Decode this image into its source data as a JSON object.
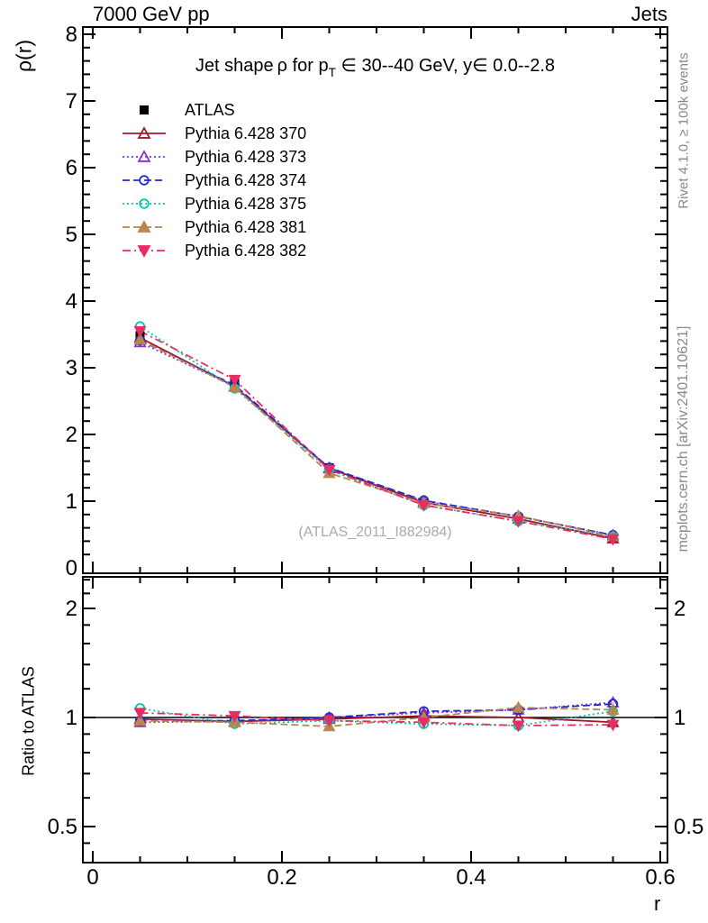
{
  "header": {
    "left": "7000 GeV pp",
    "right": "Jets"
  },
  "title": {
    "prefix": "Jet shape ρ for p",
    "sub": "T",
    "suffix": " ∈ 30--40 GeV, y∈ 0.0--2.8"
  },
  "watermark": "(ATLAS_2011_I882984)",
  "side_notes": {
    "top_right": "Rivet 4.1.0, ≥ 100k events",
    "bottom_right": "mcplots.cern.ch [arXiv:2401.10621]"
  },
  "axis_labels": {
    "main_y": "ρ(r)",
    "ratio_y": "Ratio to ATLAS",
    "x": "r"
  },
  "chart_data": {
    "type": "line",
    "title": "Jet shape ρ for pT ∈ 30--40 GeV, y ∈ 0.0--2.8",
    "xlabel": "r",
    "ylabel": "ρ(r)",
    "ratio_ylabel": "Ratio to ATLAS",
    "x": [
      0.05,
      0.15,
      0.25,
      0.35,
      0.45,
      0.55
    ],
    "x_axis": {
      "min": 0,
      "max": 0.6,
      "major_ticks": [
        0,
        0.2,
        0.4,
        0.6
      ],
      "tick_labels": [
        "0",
        "0.2",
        "0.4",
        "0.6"
      ],
      "minor_step": 0.05
    },
    "main_axis": {
      "min": 0,
      "max": 8.1,
      "major_ticks": [
        0,
        1,
        2,
        3,
        4,
        5,
        6,
        7,
        8
      ],
      "tick_labels": [
        "0",
        "1",
        "2",
        "3",
        "4",
        "5",
        "6",
        "7",
        "8"
      ],
      "minor_step": 0.2
    },
    "ratio_axis": {
      "scale": "log",
      "min": 0.4,
      "max": 2.45,
      "major_ticks": [
        0.5,
        1,
        2
      ],
      "tick_labels": [
        "0.5",
        "1",
        "2"
      ],
      "minor_ticks": [
        0.45,
        0.6,
        0.7,
        0.8,
        0.9,
        1.2,
        1.4,
        1.6,
        1.8,
        2.2,
        2.4
      ]
    },
    "grid": false,
    "legend_position": "top-left",
    "series": [
      {
        "name": "ATLAS",
        "color": "#000000",
        "line": null,
        "marker": "square",
        "filled": true,
        "values": [
          3.48,
          2.79,
          1.5,
          0.97,
          0.735,
          0.45
        ],
        "ratio": [
          1.0,
          1.0,
          1.0,
          1.0,
          1.0,
          1.0
        ]
      },
      {
        "name": "Pythia 6.428 370",
        "color": "#a0182c",
        "line": "solid",
        "marker": "triangle-up",
        "filled": false,
        "values": [
          3.45,
          2.72,
          1.49,
          0.98,
          0.735,
          0.44
        ],
        "ratio": [
          0.99,
          0.975,
          0.99,
          1.01,
          1.0,
          0.97
        ]
      },
      {
        "name": "Pythia 6.428 373",
        "color": "#8833cc",
        "line": "dotted",
        "marker": "triangle-up",
        "filled": false,
        "values": [
          3.38,
          2.72,
          1.5,
          1.0,
          0.77,
          0.49
        ],
        "ratio": [
          0.97,
          0.975,
          1.0,
          1.03,
          1.05,
          1.1
        ]
      },
      {
        "name": "Pythia 6.428 374",
        "color": "#2727cc",
        "line": "dashed",
        "marker": "circle",
        "filled": false,
        "values": [
          3.41,
          2.74,
          1.5,
          1.01,
          0.77,
          0.49
        ],
        "ratio": [
          0.98,
          0.98,
          1.0,
          1.04,
          1.05,
          1.09
        ]
      },
      {
        "name": "Pythia 6.428 375",
        "color": "#00c8b0",
        "line": "dotted",
        "marker": "circle",
        "filled": false,
        "values": [
          3.62,
          2.69,
          1.47,
          0.94,
          0.7,
          0.47
        ],
        "ratio": [
          1.06,
          0.96,
          0.98,
          0.96,
          0.95,
          1.04
        ]
      },
      {
        "name": "Pythia 6.428 381",
        "color": "#b8864e",
        "line": "dashed",
        "marker": "triangle-up",
        "filled": true,
        "values": [
          3.42,
          2.71,
          1.42,
          0.97,
          0.78,
          0.47
        ],
        "ratio": [
          0.98,
          0.97,
          0.945,
          1.0,
          1.065,
          1.05
        ]
      },
      {
        "name": "Pythia 6.428 382",
        "color": "#e62e62",
        "line": "dashdot",
        "marker": "triangle-down",
        "filled": true,
        "values": [
          3.55,
          2.82,
          1.47,
          0.94,
          0.7,
          0.43
        ],
        "ratio": [
          1.03,
          1.01,
          0.98,
          0.97,
          0.95,
          0.955
        ]
      }
    ]
  }
}
